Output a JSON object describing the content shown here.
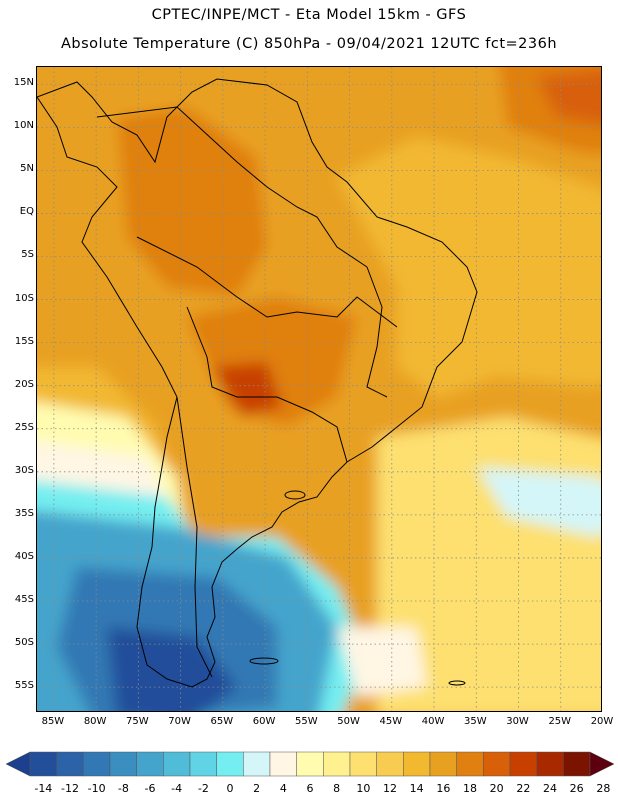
{
  "title": {
    "line1": "CPTEC/INPE/MCT -  Eta Model 15km - GFS",
    "line2": "Absolute Temperature (C) 850hPa - 09/04/2021 12UTC fct=236h"
  },
  "map": {
    "lat_range": [
      17,
      -58
    ],
    "lon_range": [
      -87,
      -20
    ],
    "lat_labels": [
      "15N",
      "10N",
      "5N",
      "EQ",
      "5S",
      "10S",
      "15S",
      "20S",
      "25S",
      "30S",
      "35S",
      "40S",
      "45S",
      "50S",
      "55S"
    ],
    "lat_values": [
      15,
      10,
      5,
      0,
      -5,
      -10,
      -15,
      -20,
      -25,
      -30,
      -35,
      -40,
      -45,
      -50,
      -55
    ],
    "lon_labels": [
      "85W",
      "80W",
      "75W",
      "70W",
      "65W",
      "60W",
      "55W",
      "50W",
      "45W",
      "40W",
      "35W",
      "30W",
      "25W",
      "20W"
    ],
    "lon_values": [
      -85,
      -80,
      -75,
      -70,
      -65,
      -60,
      -55,
      -50,
      -45,
      -40,
      -35,
      -30,
      -25,
      -20
    ]
  },
  "colorbar": {
    "labels": [
      "-14",
      "-12",
      "-10",
      "-8",
      "-6",
      "-4",
      "-2",
      "0",
      "2",
      "4",
      "6",
      "8",
      "10",
      "12",
      "14",
      "16",
      "18",
      "20",
      "22",
      "24",
      "26",
      "28"
    ],
    "colors": [
      "#1c3f8e",
      "#234e9a",
      "#2b62a8",
      "#3278b4",
      "#3a8ec0",
      "#44a4cc",
      "#50bcd8",
      "#60d4e4",
      "#74eef0",
      "#d4f6f8",
      "#fff6e4",
      "#fffcb0",
      "#fff090",
      "#fde070",
      "#f8cc50",
      "#f2b830",
      "#e8a020",
      "#e08010",
      "#d86008",
      "#c84000",
      "#a82800",
      "#7a1400",
      "#5c0010"
    ]
  }
}
